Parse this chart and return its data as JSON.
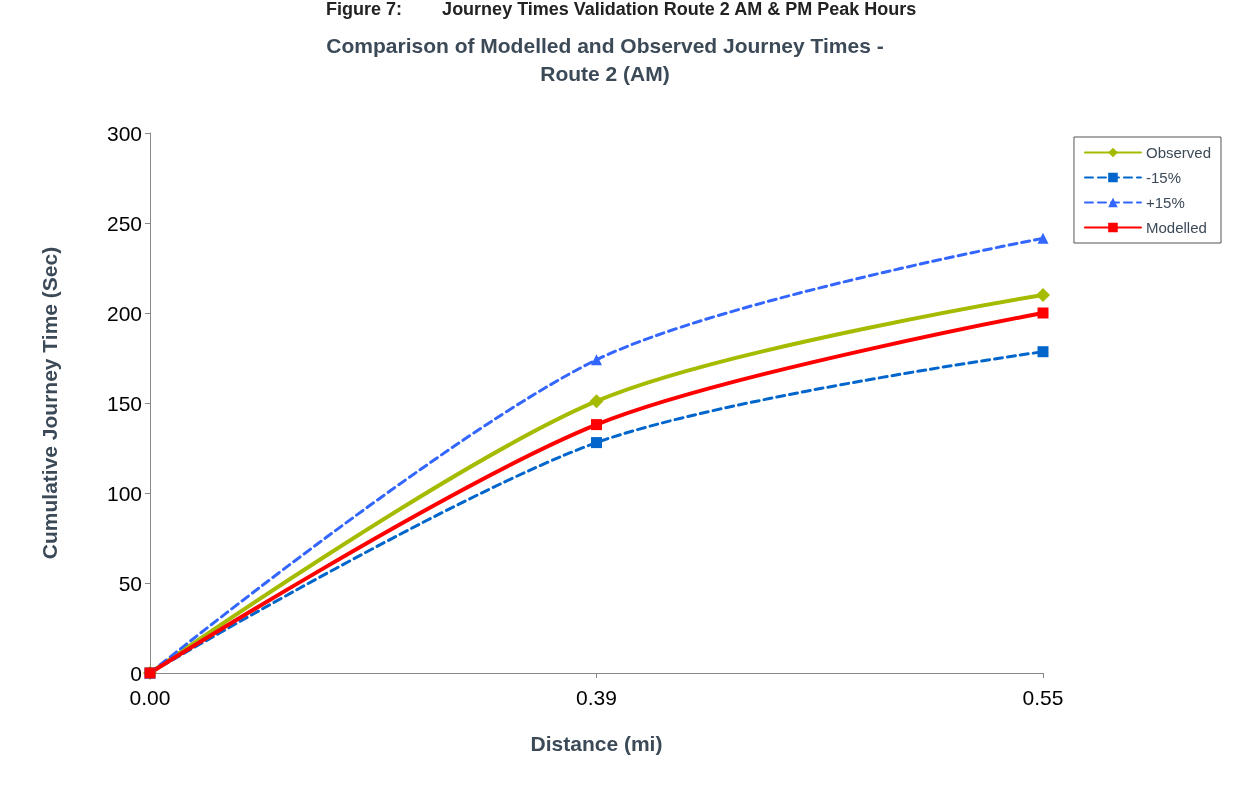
{
  "chart_data": {
    "type": "line",
    "title": "Comparison of Modelled and Observed Journey Times -\nRoute 2 (AM)",
    "annotations": [
      "Figure 7:        Journey Times Validation Route 2 AM & PM Peak Hours"
    ],
    "xlabel": "Distance (mi)",
    "ylabel": "Cumulative Journey Time (Sec)",
    "categories": [
      "0.00",
      "0.39",
      "0.55"
    ],
    "series": [
      {
        "name": "Observed",
        "color": "#a5bb00",
        "marker": "diamond",
        "line_style": "solid",
        "values": [
          0,
          151,
          210
        ]
      },
      {
        "name": "-15%",
        "color": "#0066cc",
        "marker": "square",
        "line_style": "dashed",
        "values": [
          0,
          128,
          178.5
        ]
      },
      {
        "name": "+15%",
        "color": "#3366ff",
        "marker": "triangle",
        "line_style": "dashed",
        "values": [
          0,
          174,
          241.5
        ]
      },
      {
        "name": "Modelled",
        "color": "#ff0000",
        "marker": "square",
        "line_style": "solid",
        "values": [
          0,
          138,
          200
        ]
      }
    ],
    "ylim": [
      0,
      300
    ],
    "yticks": [
      0,
      50,
      100,
      150,
      200,
      250,
      300
    ],
    "grid": false,
    "legend": "top right"
  }
}
